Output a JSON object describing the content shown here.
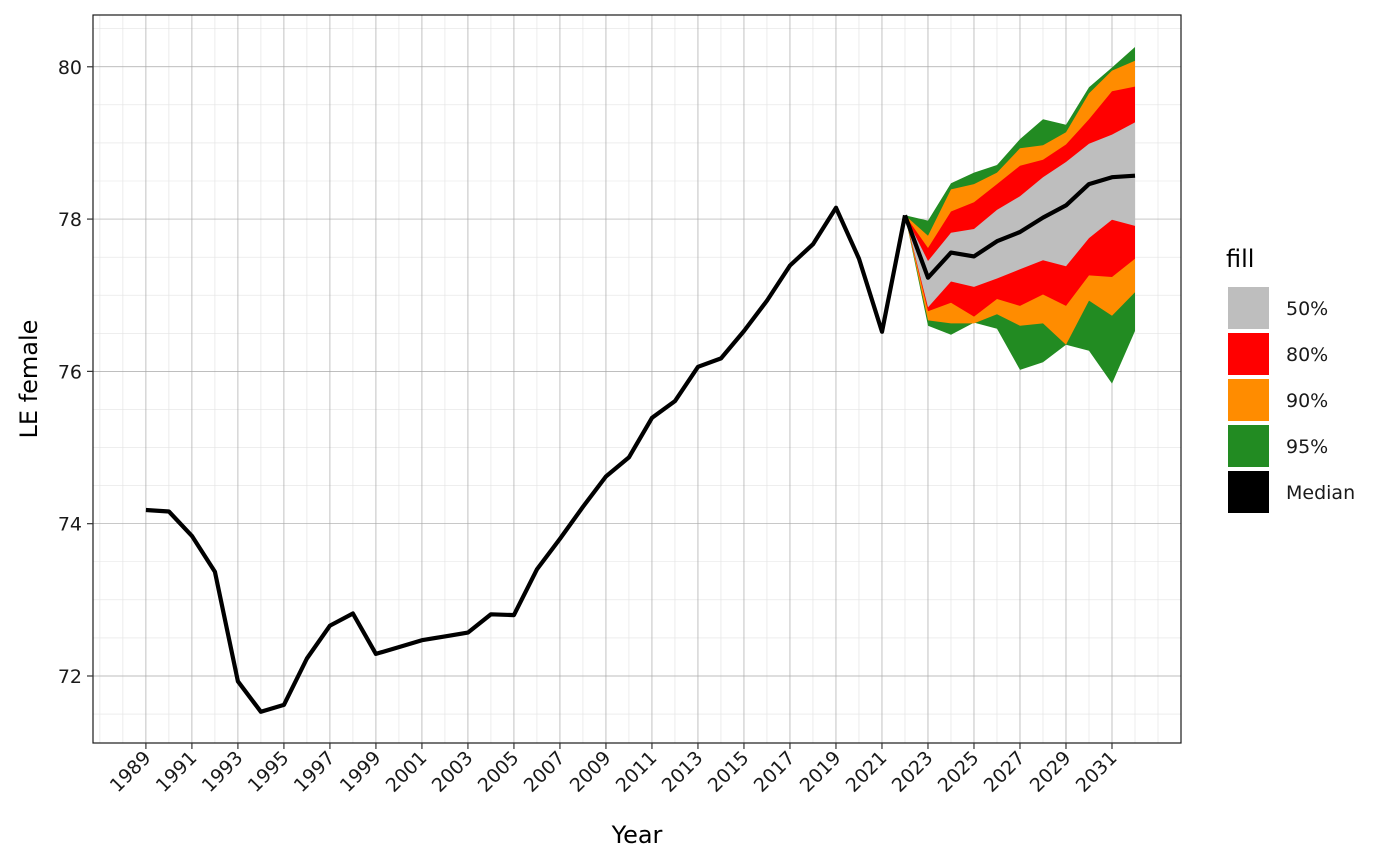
{
  "chart_data": {
    "type": "area",
    "xlabel": "Year",
    "ylabel": "LE female",
    "xlim": [
      1986.7,
      2034
    ],
    "ylim": [
      71.12,
      80.68
    ],
    "x_ticks": [
      1989,
      1991,
      1993,
      1995,
      1997,
      1999,
      2001,
      2003,
      2005,
      2007,
      2009,
      2011,
      2013,
      2015,
      2017,
      2019,
      2021,
      2023,
      2025,
      2027,
      2029,
      2031
    ],
    "y_ticks": [
      72,
      74,
      76,
      78,
      80
    ],
    "grid": true,
    "legend": {
      "title": "fill",
      "position": "right",
      "items": [
        {
          "label": "50%",
          "color": "#bebebe"
        },
        {
          "label": "80%",
          "color": "#ff0000"
        },
        {
          "label": "90%",
          "color": "#ff8c00"
        },
        {
          "label": "95%",
          "color": "#228b22"
        },
        {
          "label": "Median",
          "color": "#000000"
        }
      ]
    },
    "observed": {
      "x": [
        1989,
        1990,
        1991,
        1992,
        1993,
        1994,
        1995,
        1996,
        1997,
        1998,
        1999,
        2000,
        2001,
        2002,
        2003,
        2004,
        2005,
        2006,
        2007,
        2008,
        2009,
        2010,
        2011,
        2012,
        2013,
        2014,
        2015,
        2016,
        2017,
        2018,
        2019,
        2020,
        2021,
        2022
      ],
      "y": [
        74.18,
        74.16,
        73.84,
        73.37,
        71.93,
        71.53,
        71.62,
        72.23,
        72.66,
        72.82,
        72.29,
        72.38,
        72.47,
        72.52,
        72.57,
        72.81,
        72.8,
        73.4,
        73.8,
        74.22,
        74.62,
        74.87,
        75.39,
        75.61,
        76.06,
        76.17,
        76.53,
        76.93,
        77.39,
        77.67,
        78.15,
        77.48,
        76.52,
        78.05
      ]
    },
    "forecast": {
      "x": [
        2022,
        2023,
        2024,
        2025,
        2026,
        2027,
        2028,
        2029,
        2030,
        2031,
        2032
      ],
      "median": [
        78.05,
        77.23,
        77.56,
        77.51,
        77.71,
        77.83,
        78.02,
        78.18,
        78.46,
        78.55,
        78.57
      ],
      "bands": [
        {
          "level": "95%",
          "color": "#228b22",
          "lower": [
            78.05,
            76.6,
            76.48,
            76.64,
            76.56,
            76.02,
            76.12,
            76.35,
            76.27,
            75.84,
            76.53
          ],
          "upper": [
            78.05,
            77.98,
            78.47,
            78.61,
            78.71,
            79.05,
            79.31,
            79.24,
            79.73,
            79.99,
            80.26
          ]
        },
        {
          "level": "90%",
          "color": "#ff8c00",
          "lower": [
            78.05,
            76.67,
            76.63,
            76.63,
            76.75,
            76.6,
            76.63,
            76.35,
            76.93,
            76.73,
            77.04
          ]
        },
        {
          "level": "80%",
          "color": "#ff0000",
          "lower": [
            78.05,
            76.79,
            76.9,
            76.72,
            76.95,
            76.86,
            77.01,
            76.86,
            77.26,
            77.24,
            77.48
          ],
          "upper": [
            78.05,
            77.78,
            78.39,
            78.46,
            78.61,
            78.93,
            78.97,
            79.14,
            79.65,
            79.95,
            80.08
          ]
        },
        {
          "level": "50%",
          "color": "#bebebe",
          "lower": [
            78.05,
            76.84,
            77.18,
            77.11,
            77.22,
            77.34,
            77.46,
            77.38,
            77.75,
            77.99,
            77.91
          ],
          "upper": [
            78.05,
            77.62,
            78.1,
            78.22,
            78.46,
            78.7,
            78.78,
            78.98,
            79.31,
            79.68,
            79.74
          ]
        },
        {
          "level": "50% inner",
          "color": "#bebebe",
          "lower": [
            78.05,
            77.01,
            77.4,
            77.45,
            77.64,
            77.75,
            77.92,
            78.12,
            78.41,
            78.5,
            78.54
          ],
          "upper": [
            78.05,
            77.45,
            77.82,
            77.87,
            78.12,
            78.3,
            78.55,
            78.75,
            78.99,
            79.11,
            79.27
          ]
        }
      ]
    }
  }
}
